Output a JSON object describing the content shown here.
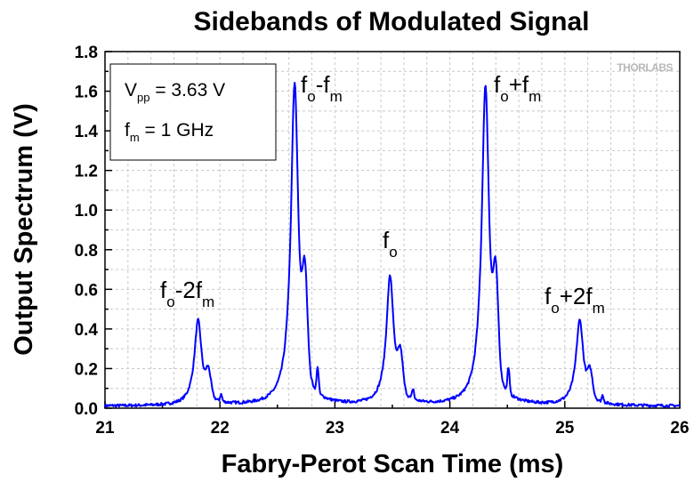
{
  "chart_data": {
    "type": "line",
    "title": "Sidebands of Modulated Signal",
    "xlabel": "Fabry-Perot Scan Time (ms)",
    "ylabel": "Output Spectrum (V)",
    "xlim": [
      21,
      26
    ],
    "ylim": [
      0.0,
      1.8
    ],
    "xticks": [
      "21",
      "22",
      "23",
      "24",
      "25",
      "26"
    ],
    "yticks": [
      "0.0",
      "0.2",
      "0.4",
      "0.6",
      "0.8",
      "1.0",
      "1.2",
      "1.4",
      "1.6",
      "1.8"
    ],
    "grid": true,
    "line_color": "#0000ff",
    "baseline": 0.01,
    "peaks": [
      {
        "label": "fo-2fm",
        "x": 21.81,
        "y": 0.43
      },
      {
        "label": "fo-fm",
        "x": 22.65,
        "y": 1.63
      },
      {
        "label": "fo",
        "x": 23.48,
        "y": 0.65
      },
      {
        "label": "fo+fm",
        "x": 24.31,
        "y": 1.62
      },
      {
        "label": "fo+2fm",
        "x": 25.13,
        "y": 0.43
      }
    ],
    "annotations": {
      "p1": {
        "base": "f",
        "sub1": "o",
        "mid": "-2f",
        "sub2": "m"
      },
      "p2": {
        "base": "f",
        "sub1": "o",
        "mid": "-f",
        "sub2": "m"
      },
      "p3": {
        "base": "f",
        "sub1": "o"
      },
      "p4": {
        "base": "f",
        "sub1": "o",
        "mid": "+f",
        "sub2": "m"
      },
      "p5": {
        "base": "f",
        "sub1": "o",
        "mid": "+2f",
        "sub2": "m"
      }
    },
    "info_box": {
      "line1": {
        "base": "V",
        "sub": "pp",
        "rest": " = 3.63 V"
      },
      "line2": {
        "base": "f",
        "sub": "m",
        "rest": " = 1 GHz"
      }
    },
    "logo": "THORLABS"
  }
}
